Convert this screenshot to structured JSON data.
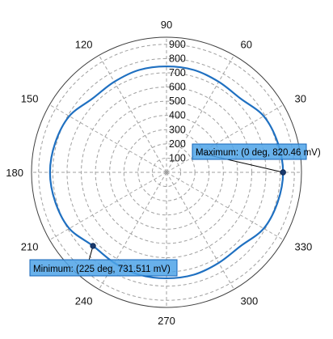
{
  "chart_data": {
    "type": "polar-line",
    "title": "",
    "angle_ticks": [
      "0",
      "30",
      "60",
      "90",
      "120",
      "150",
      "180",
      "210",
      "240",
      "270",
      "300",
      "330"
    ],
    "radial_ticks": [
      "100",
      "200",
      "300",
      "400",
      "500",
      "600",
      "700",
      "800",
      "900"
    ],
    "radial_range": [
      0,
      950
    ],
    "angle_labels_shown": [
      "30",
      "60",
      "90",
      "120",
      "150",
      "180",
      "210",
      "240",
      "270",
      "300",
      "330"
    ],
    "grid": true,
    "series": [
      {
        "color": "#1f70c1",
        "theta": [
          0,
          15,
          30,
          45,
          60,
          75,
          90,
          105,
          120,
          135,
          150,
          165,
          180,
          195,
          210,
          225,
          240,
          255,
          270,
          285,
          300,
          315,
          330,
          345
        ],
        "r": [
          820.46,
          810,
          790,
          735,
          735,
          745,
          745,
          745,
          735,
          735,
          790,
          810,
          820,
          810,
          790,
          731.511,
          735,
          745,
          745,
          745,
          735,
          735,
          790,
          810
        ]
      }
    ],
    "annotations": [
      {
        "text": "Maximum: (0 deg, 820.46 mV)",
        "theta": 0,
        "r": 820.46
      },
      {
        "text": "Minimum: (225 deg, 731.511 mV)",
        "theta": 225,
        "r": 731.511
      }
    ]
  }
}
